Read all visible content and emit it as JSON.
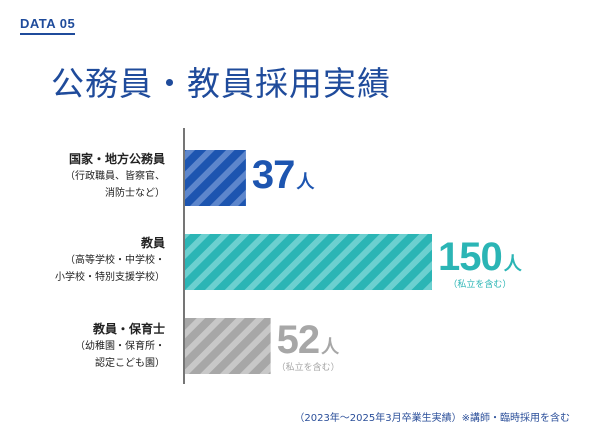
{
  "header": {
    "tag": "DATA 05",
    "title": "公務員・教員採用実績"
  },
  "chart_data": {
    "type": "bar",
    "orientation": "horizontal",
    "title": "公務員・教員採用実績",
    "unit": "人",
    "xlim": [
      0,
      150
    ],
    "grid": false,
    "categories": [
      "国家・地方公務員（行政職員、皆察官、消防士など）",
      "教員（高等学校・中学校・小学校・特別支援学校）",
      "教員・保育士（幼稚園・保育所・認定こども園）"
    ],
    "values": [
      37,
      150,
      52
    ],
    "notes": [
      "",
      "（私立を含む）",
      "（私立を含む）"
    ],
    "colors": [
      "#1d55b0",
      "#2bb5b5",
      "#a7a7a7"
    ]
  },
  "labels": [
    {
      "main": "国家・地方公務員",
      "sub1": "（行政職員、皆察官、",
      "sub2": "消防士など）"
    },
    {
      "main": "教員",
      "sub1": "（高等学校・中学校・",
      "sub2": "小学校・特別支援学校）"
    },
    {
      "main": "教員・保育士",
      "sub1": "（幼稚園・保育所・",
      "sub2": "認定こども園）"
    }
  ],
  "values_text": [
    {
      "num": "37",
      "unit": "人",
      "note": ""
    },
    {
      "num": "150",
      "unit": "人",
      "note": "（私立を含む）"
    },
    {
      "num": "52",
      "unit": "人",
      "note": "（私立を含む）"
    }
  ],
  "footnote": "（2023年〜2025年3月卒業生実績）※講師・臨時採用を含む"
}
